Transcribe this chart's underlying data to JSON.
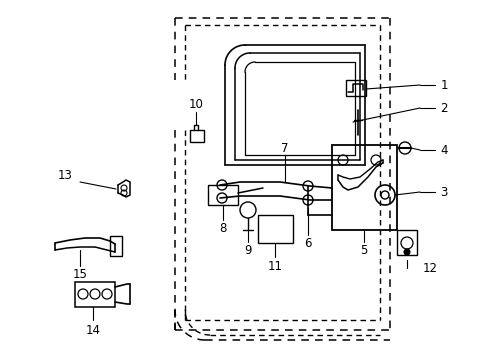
{
  "bg": "#ffffff",
  "lc": "#000000",
  "fw": 4.89,
  "fh": 3.6,
  "dpi": 100,
  "fs": 8.5
}
